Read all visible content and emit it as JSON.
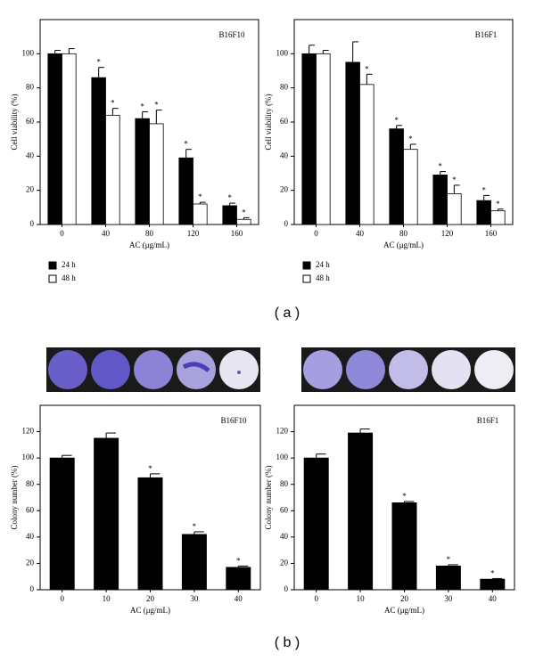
{
  "chart_data": [
    {
      "type": "bar",
      "title": "B16F10",
      "x_label": "AC (μg/mL)",
      "y_label": "Cell viability (%)",
      "categories": [
        "0",
        "40",
        "80",
        "120",
        "160"
      ],
      "series": [
        {
          "name": "24 h",
          "color": "#000000",
          "values": [
            100,
            86,
            62,
            39,
            11
          ],
          "errors": [
            2,
            6,
            4,
            5,
            1.5
          ],
          "significance": [
            null,
            "*",
            "*",
            "*",
            "*"
          ]
        },
        {
          "name": "48 h",
          "color": "#ffffff",
          "values": [
            100,
            64,
            59,
            12,
            3
          ],
          "errors": [
            3,
            4,
            8,
            1,
            1
          ],
          "significance": [
            null,
            "*",
            "*",
            "*",
            "*"
          ]
        }
      ],
      "ylim": [
        0,
        120
      ],
      "yticks": [
        0,
        20,
        40,
        60,
        80,
        100
      ]
    },
    {
      "type": "bar",
      "title": "B16F1",
      "x_label": "AC (μg/mL)",
      "y_label": "Cell viability (%)",
      "categories": [
        "0",
        "40",
        "80",
        "120",
        "160"
      ],
      "series": [
        {
          "name": "24 h",
          "color": "#000000",
          "values": [
            100,
            95,
            56,
            29,
            14
          ],
          "errors": [
            5,
            12,
            2,
            2,
            3
          ],
          "significance": [
            null,
            null,
            "*",
            "*",
            "*"
          ]
        },
        {
          "name": "48 h",
          "color": "#ffffff",
          "values": [
            100,
            82,
            44,
            18,
            8
          ],
          "errors": [
            2,
            6,
            3,
            5,
            1
          ],
          "significance": [
            null,
            "*",
            "*",
            "*",
            "*"
          ]
        }
      ],
      "ylim": [
        0,
        120
      ],
      "yticks": [
        0,
        20,
        40,
        60,
        80,
        100
      ]
    },
    {
      "type": "bar",
      "title": "B16F10",
      "x_label": "AC (μg/mL)",
      "y_label": "Colony number (%)",
      "categories": [
        "0",
        "10",
        "20",
        "30",
        "40"
      ],
      "series": [
        {
          "color": "#000000",
          "values": [
            100,
            115,
            85,
            42,
            17
          ],
          "errors": [
            2,
            4,
            3,
            2,
            1
          ],
          "significance": [
            null,
            null,
            "*",
            "*",
            "*"
          ]
        }
      ],
      "ylim": [
        0,
        140
      ],
      "yticks": [
        0,
        20,
        40,
        60,
        80,
        100,
        120
      ]
    },
    {
      "type": "bar",
      "title": "B16F1",
      "x_label": "AC (μg/mL)",
      "y_label": "Colony number (%)",
      "categories": [
        "0",
        "10",
        "20",
        "30",
        "40"
      ],
      "series": [
        {
          "color": "#000000",
          "values": [
            100,
            119,
            66,
            18,
            8
          ],
          "errors": [
            3,
            3,
            1,
            1,
            0.5
          ],
          "significance": [
            null,
            null,
            "*",
            "*",
            "*"
          ]
        }
      ],
      "ylim": [
        0,
        140
      ],
      "yticks": [
        0,
        20,
        40,
        60,
        80,
        100,
        120
      ]
    }
  ],
  "panel_labels": [
    "( a )",
    "( b )"
  ]
}
